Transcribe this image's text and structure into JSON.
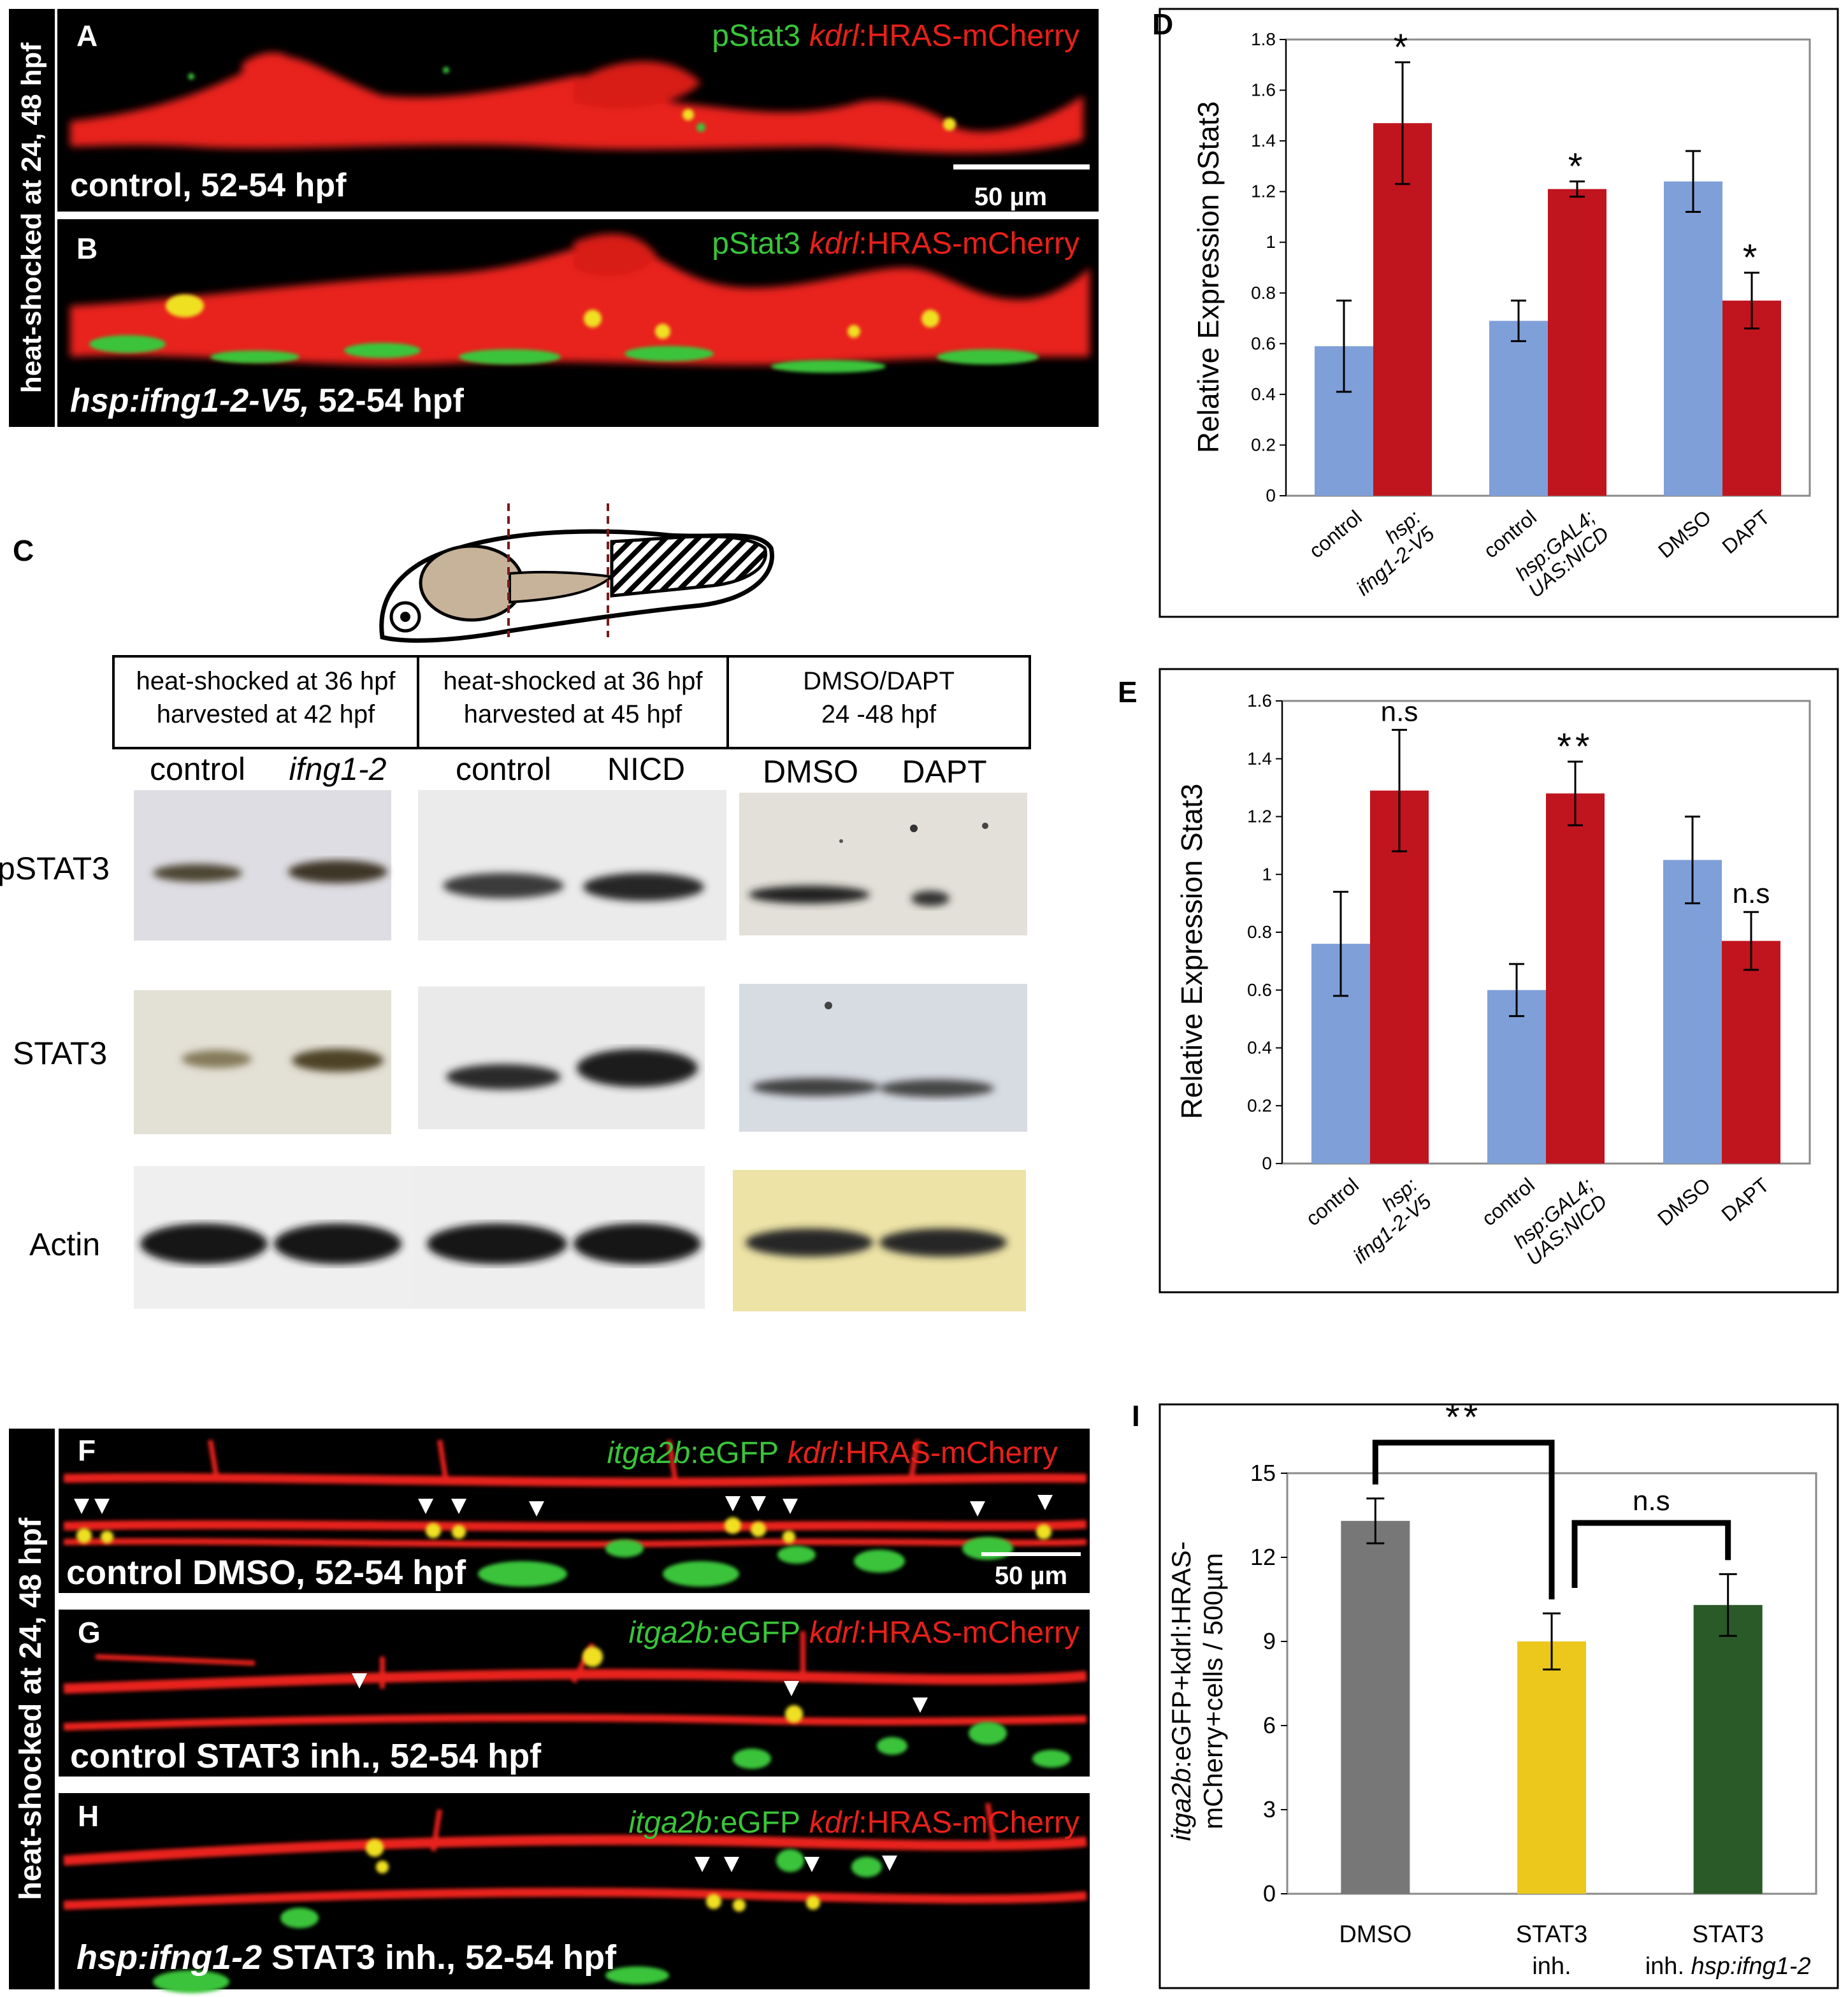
{
  "panelA": {
    "letter": "A",
    "label_green": "pStat3",
    "label_red_italic": "kdrl",
    "label_red_rest": ":HRAS-mCherry",
    "caption": "control, 52-54 hpf",
    "scale_bar_label": "50 µm"
  },
  "panelB": {
    "letter": "B",
    "label_green": "pStat3",
    "label_red_italic": "kdrl",
    "label_red_rest": ":HRAS-mCherry",
    "caption_italic": "hsp:ifng1-2-V5,",
    "caption_rest": "52-54 hpf"
  },
  "side_label_top": "heat-shocked at 24, 48 hpf",
  "side_label_bottom": "heat-shocked at 24, 48 hpf",
  "panelC": {
    "letter": "C",
    "boxes": [
      {
        "line1": "heat-shocked at 36 hpf",
        "line2": "harvested at 42 hpf"
      },
      {
        "line1": "heat-shocked at 36 hpf",
        "line2": "harvested at 45 hpf"
      },
      {
        "line1": "DMSO/DAPT",
        "line2": "24 -48 hpf"
      }
    ],
    "lane_labels": [
      {
        "text": "control",
        "italic": false
      },
      {
        "text": "ifng1-2",
        "italic": true
      },
      {
        "text": "control",
        "italic": false
      },
      {
        "text": "NICD",
        "italic": false
      },
      {
        "text": "DMSO",
        "italic": false
      },
      {
        "text": "DAPT",
        "italic": false
      }
    ],
    "row_labels": [
      "pSTAT3",
      "STAT3",
      "Actin"
    ]
  },
  "panelF": {
    "letter": "F",
    "label_green_italic": "itga2b",
    "label_green_rest": ":eGFP",
    "label_red_italic": "kdrl",
    "label_red_rest": ":HRAS-mCherry",
    "caption": "control DMSO, 52-54 hpf",
    "scale_bar_label": "50 µm"
  },
  "panelG": {
    "letter": "G",
    "label_green_italic": "itga2b",
    "label_green_rest": ":eGFP",
    "label_red_italic": "kdrl",
    "label_red_rest": ":HRAS-mCherry",
    "caption": "control STAT3 inh., 52-54 hpf"
  },
  "panelH": {
    "letter": "H",
    "label_green_italic": "itga2b",
    "label_green_rest": ":eGFP",
    "label_red_italic": "kdrl",
    "label_red_rest": ":HRAS-mCherry",
    "caption_italic": "hsp:ifng1-2",
    "caption_rest": " STAT3 inh., 52-54 hpf"
  },
  "colors": {
    "blue_bar": "#7f9fd8",
    "red_bar": "#c0151e",
    "gray_bar": "#777777",
    "yellow_bar": "#ecc81c",
    "green_bar": "#2a5a28",
    "micro_red": "#e8201a",
    "micro_green": "#3ac43a"
  },
  "chart_data": [
    {
      "panel": "D",
      "type": "bar",
      "ylabel": "Relative Expression pStat3",
      "ylim": [
        0,
        1.8
      ],
      "yticks": [
        "0",
        "0.2",
        "0.4",
        "0.6",
        "0.8",
        "1",
        "1.2",
        "1.4",
        "1.6",
        "1.8"
      ],
      "groups": [
        {
          "bars": [
            {
              "label": [
                "control"
              ],
              "italic": false,
              "value": 0.59,
              "err": 0.18,
              "color": "blue",
              "sig": ""
            },
            {
              "label": [
                "hsp:",
                "ifng1-2-V5"
              ],
              "italic": true,
              "value": 1.47,
              "err": 0.24,
              "color": "red",
              "sig": "*"
            }
          ]
        },
        {
          "bars": [
            {
              "label": [
                "control"
              ],
              "italic": false,
              "value": 0.69,
              "err": 0.08,
              "color": "blue",
              "sig": ""
            },
            {
              "label": [
                "hsp:GAL4;",
                "UAS:NICD"
              ],
              "italic": true,
              "value": 1.21,
              "err": 0.03,
              "color": "red",
              "sig": "*"
            }
          ]
        },
        {
          "bars": [
            {
              "label": [
                "DMSO"
              ],
              "italic": false,
              "value": 1.24,
              "err": 0.12,
              "color": "blue",
              "sig": ""
            },
            {
              "label": [
                "DAPT"
              ],
              "italic": false,
              "value": 0.77,
              "err": 0.11,
              "color": "red",
              "sig": "*"
            }
          ]
        }
      ]
    },
    {
      "panel": "E",
      "type": "bar",
      "ylabel": "Relative Expression Stat3",
      "ylim": [
        0,
        1.6
      ],
      "yticks": [
        "0",
        "0.2",
        "0.4",
        "0.6",
        "0.8",
        "1",
        "1.2",
        "1.4",
        "1.6"
      ],
      "groups": [
        {
          "bars": [
            {
              "label": [
                "control"
              ],
              "italic": false,
              "value": 0.76,
              "err": 0.18,
              "color": "blue",
              "sig": ""
            },
            {
              "label": [
                "hsp:",
                "ifng1-2-V5"
              ],
              "italic": true,
              "value": 1.29,
              "err": 0.21,
              "color": "red",
              "sig": "n.s"
            }
          ]
        },
        {
          "bars": [
            {
              "label": [
                "control"
              ],
              "italic": false,
              "value": 0.6,
              "err": 0.09,
              "color": "blue",
              "sig": ""
            },
            {
              "label": [
                "hsp:GAL4;",
                "UAS:NICD"
              ],
              "italic": true,
              "value": 1.28,
              "err": 0.11,
              "color": "red",
              "sig": "**"
            }
          ]
        },
        {
          "bars": [
            {
              "label": [
                "DMSO"
              ],
              "italic": false,
              "value": 1.05,
              "err": 0.15,
              "color": "blue",
              "sig": ""
            },
            {
              "label": [
                "DAPT"
              ],
              "italic": false,
              "value": 0.77,
              "err": 0.1,
              "color": "red",
              "sig": "n.s"
            }
          ]
        }
      ]
    },
    {
      "panel": "I",
      "type": "bar",
      "ylabel_line1_italic": "itga2b",
      "ylabel_line1_rest": ":eGFP+kdrl:HRAS-",
      "ylabel_line2": "mCherry+cells / 500µm",
      "ylim": [
        0,
        15
      ],
      "yticks": [
        "0",
        "3",
        "6",
        "9",
        "12",
        "15"
      ],
      "categories": [
        {
          "line1": "DMSO",
          "line2": "",
          "line2_italic": ""
        },
        {
          "line1": "STAT3",
          "line2": "inh.",
          "line2_italic": ""
        },
        {
          "line1": "STAT3",
          "line2": "inh. ",
          "line2_italic": "hsp:ifng1-2"
        }
      ],
      "values": [
        13.3,
        9.0,
        10.3
      ],
      "errors": [
        0.8,
        1.0,
        1.1
      ],
      "colors": [
        "gray",
        "yellow",
        "green"
      ],
      "brackets": [
        {
          "from": 0,
          "to": 1,
          "label": "**"
        },
        {
          "from": 1,
          "to": 2,
          "label": "n.s"
        }
      ]
    }
  ]
}
